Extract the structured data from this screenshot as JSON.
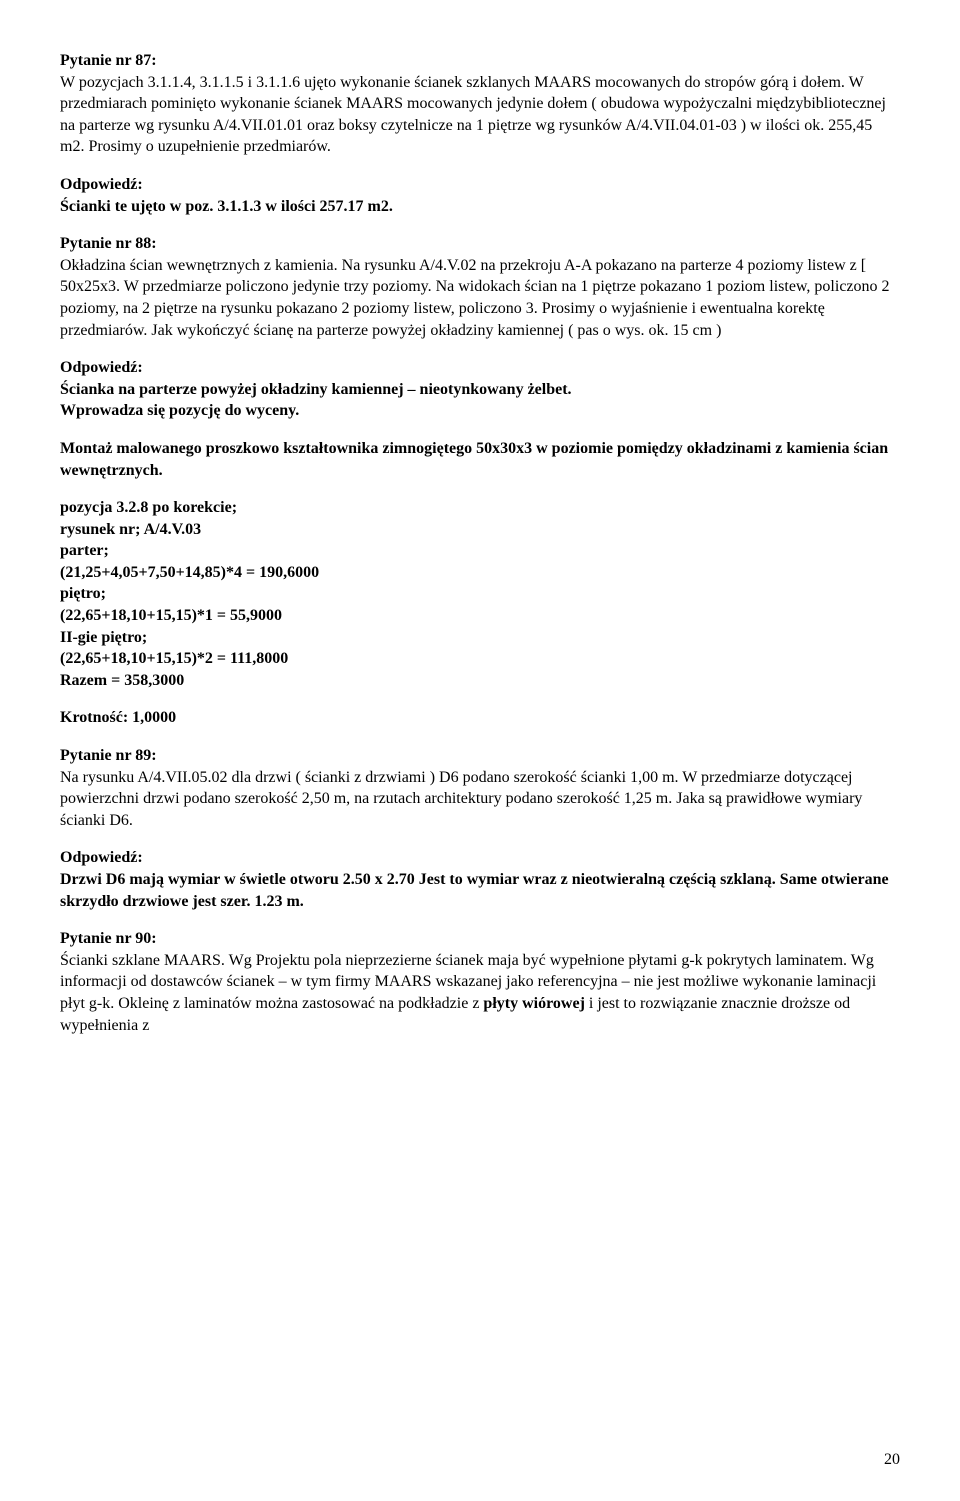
{
  "q87": {
    "title": "Pytanie nr 87:",
    "body": "W pozycjach 3.1.1.4, 3.1.1.5 i 3.1.1.6 ujęto wykonanie ścianek szklanych MAARS mocowanych do stropów górą i dołem. W przedmiarach pominięto wykonanie ścianek MAARS mocowanych jedynie dołem ( obudowa wypożyczalni międzybibliotecznej na parterze wg rysunku A/4.VII.01.01 oraz boksy czytelnicze na 1 piętrze wg rysunków A/4.VII.04.01-03 ) w ilości ok. 255,45 m2. Prosimy o uzupełnienie przedmiarów.",
    "ansLabel": "Odpowiedź:",
    "ansBody": "Ścianki  te ujęto w poz. 3.1.1.3 w ilości 257.17 m2."
  },
  "q88": {
    "title": "Pytanie nr 88:",
    "body": "Okładzina ścian wewnętrznych z kamienia. Na rysunku A/4.V.02 na przekroju A-A pokazano na parterze 4 poziomy listew z [ 50x25x3. W przedmiarze policzono jedynie trzy poziomy. Na widokach ścian na 1 piętrze pokazano 1 poziom listew, policzono 2 poziomy, na 2 piętrze na rysunku pokazano 2 poziomy listew, policzono 3. Prosimy o wyjaśnienie i ewentualna korektę przedmiarów. Jak wykończyć ścianę na parterze powyżej okładziny kamiennej ( pas o wys. ok. 15 cm )",
    "ansLabel": "Odpowiedź:",
    "ansLine1": "Ścianka na parterze powyżej okładziny kamiennej – nieotynkowany żelbet.",
    "ansLine2": "Wprowadza się pozycję do wyceny.",
    "ansLine3": "Montaż malowanego proszkowo kształtownika zimnogiętego 50x30x3 w poziomie pomiędzy okładzinami z kamienia ścian wewnętrznych.",
    "calc": {
      "l1": "pozycja 3.2.8 po korekcie;",
      "l2": "rysunek nr; A/4.V.03",
      "l3": "parter;",
      "l4": "(21,25+4,05+7,50+14,85)*4 = 190,6000",
      "l5": "piętro;",
      "l6": "(22,65+18,10+15,15)*1 = 55,9000",
      "l7": "II-gie piętro;",
      "l8": "(22,65+18,10+15,15)*2 = 111,8000",
      "l9": "Razem = 358,3000",
      "l10": "Krotność: 1,0000"
    }
  },
  "q89": {
    "title": "Pytanie nr 89:",
    "body": "Na rysunku A/4.VII.05.02 dla drzwi ( ścianki z drzwiami ) D6 podano szerokość ścianki 1,00 m. W przedmiarze dotyczącej powierzchni drzwi podano szerokość 2,50 m, na rzutach architektury podano szerokość 1,25 m. Jaka są prawidłowe wymiary ścianki D6.",
    "ansLabel": "Odpowiedź:",
    "ansBody": "Drzwi D6 mają wymiar w świetle otworu 2.50 x 2.70 Jest to wymiar wraz z nieotwieralną częścią szklaną. Same otwierane skrzydło drzwiowe jest szer. 1.23 m."
  },
  "q90": {
    "title": "Pytanie nr 90:",
    "bodyPrefix": "Ścianki szklane MAARS. Wg Projektu pola nieprzezierne ścianek maja być wypełnione płytami g-k pokrytych laminatem. Wg informacji od dostawców ścianek – w tym firmy MAARS wskazanej jako referencyjna – nie jest możliwe wykonanie laminacji płyt g-k. Okleinę z laminatów można zastosować na podkładzie z ",
    "bodyBold": "płyty wiórowej",
    "bodySuffix": " i jest to rozwiązanie znacznie droższe od wypełnienia z"
  },
  "pageNumber": "20"
}
